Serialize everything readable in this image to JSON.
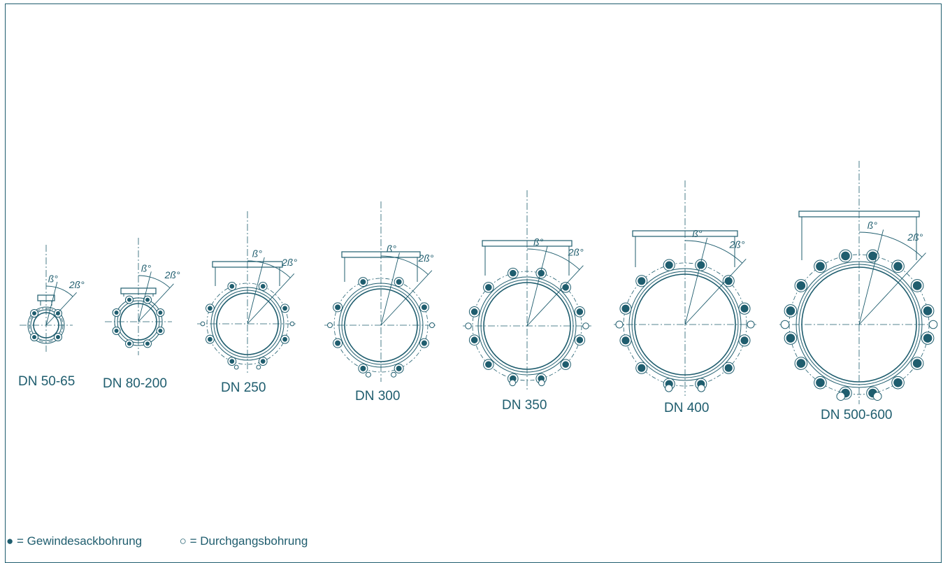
{
  "colors": {
    "line": "#1f5d6e",
    "frame": "#1f5d6e",
    "background": "#ffffff"
  },
  "angle_labels": {
    "beta": "ß°",
    "two_beta": "2ß°"
  },
  "valves": [
    {
      "id": "dn50-65",
      "label": "DN 50-65",
      "bolt_holes": {
        "threaded": 4,
        "through": 0
      }
    },
    {
      "id": "dn80-200",
      "label": "DN 80-200",
      "bolt_holes": {
        "threaded": 8,
        "through": 0
      }
    },
    {
      "id": "dn250",
      "label": "DN 250",
      "bolt_holes": {
        "threaded": 8,
        "through": 4
      }
    },
    {
      "id": "dn300",
      "label": "DN 300",
      "bolt_holes": {
        "threaded": 8,
        "through": 4
      }
    },
    {
      "id": "dn350",
      "label": "DN 350",
      "bolt_holes": {
        "threaded": 12,
        "through": 4
      }
    },
    {
      "id": "dn400",
      "label": "DN 400",
      "bolt_holes": {
        "threaded": 12,
        "through": 4
      }
    },
    {
      "id": "dn500-600",
      "label": "DN 500-600",
      "bolt_holes": {
        "threaded": 16,
        "through": 4
      }
    }
  ],
  "legend": {
    "filled": {
      "symbol": "●",
      "text": "= Gewindesackbohrung"
    },
    "open": {
      "symbol": "○",
      "text": "= Durchgangsbohrung"
    }
  }
}
